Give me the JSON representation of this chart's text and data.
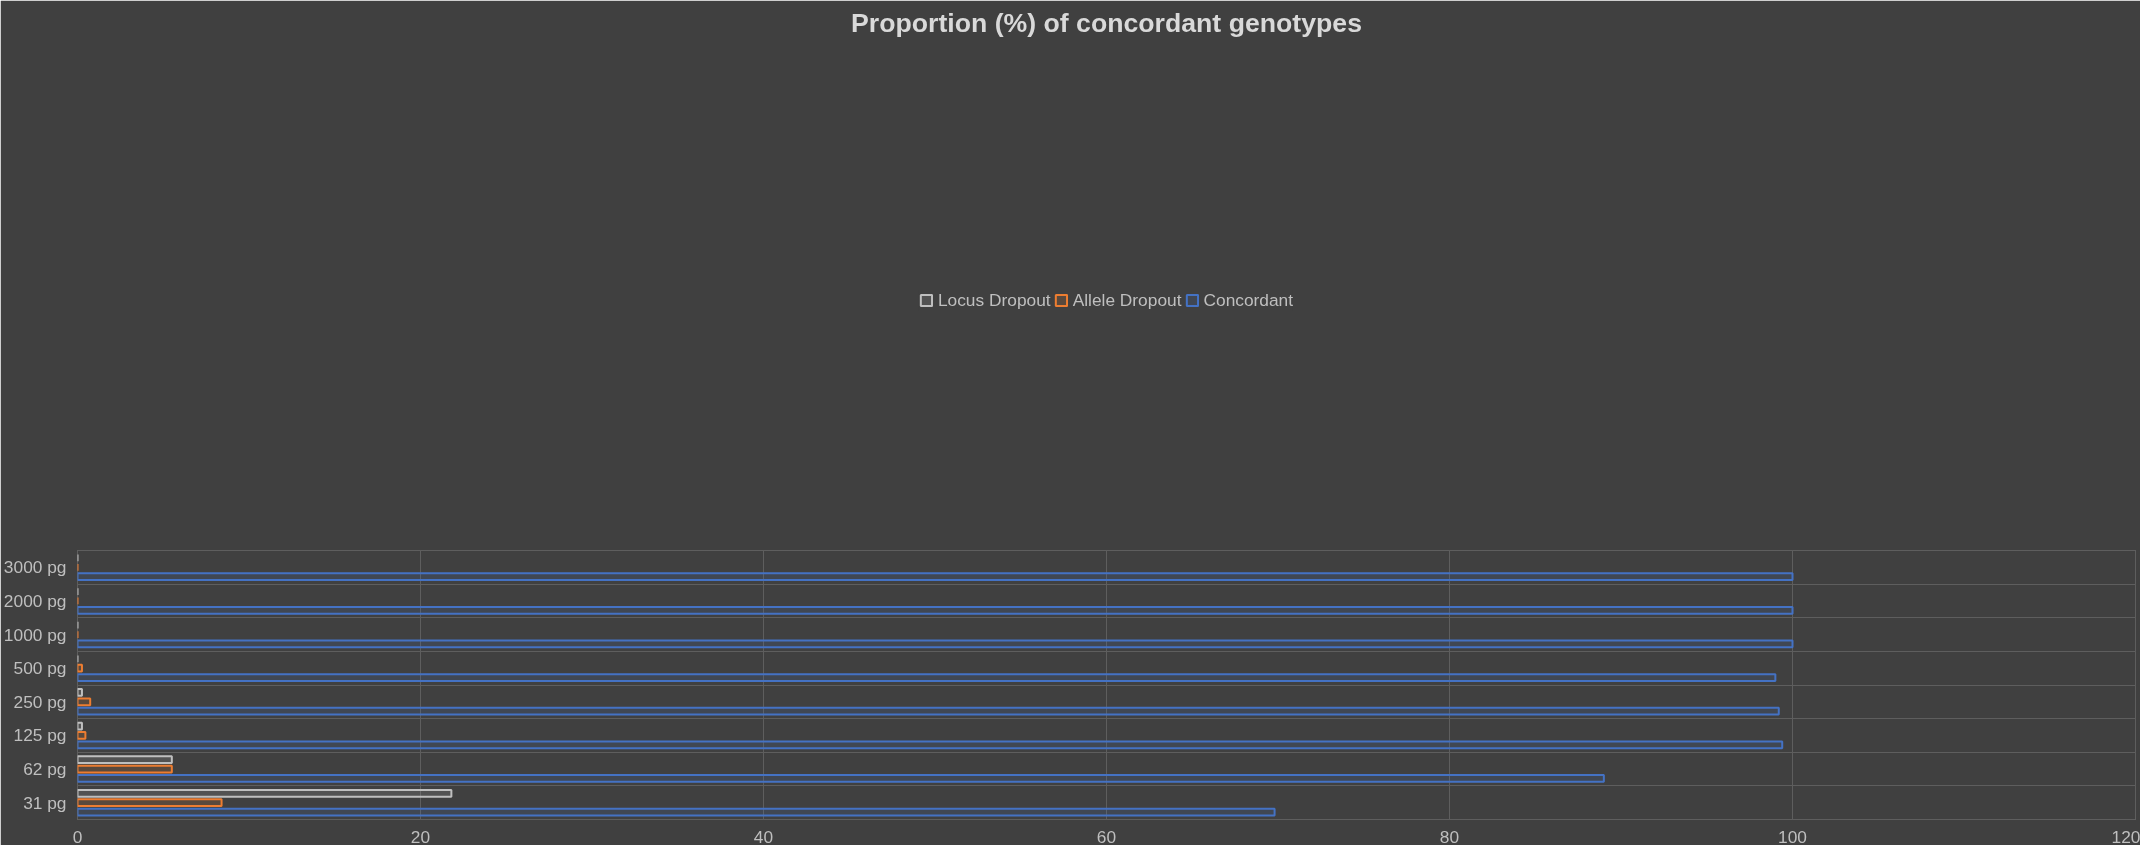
{
  "chart_data": {
    "type": "bar",
    "orientation": "horizontal",
    "title": "Proportion (%) of concordant genotypes",
    "categories": [
      "3000 pg",
      "2000 pg",
      "1000 pg",
      "500 pg",
      "250 pg",
      "125 pg",
      "62 pg",
      "31 pg"
    ],
    "series": [
      {
        "name": "Locus Dropout",
        "color": "#bfbfbf",
        "values": [
          0,
          0,
          0,
          0,
          0.26,
          0.26,
          5.5,
          21.8
        ]
      },
      {
        "name": "Allele Dropout",
        "color": "#ed7d31",
        "values": [
          0,
          0,
          0,
          0.26,
          0.74,
          0.46,
          5.5,
          8.4
        ]
      },
      {
        "name": "Concordant",
        "color": "#4472c4",
        "values": [
          100,
          100,
          100,
          99.0,
          99.2,
          99.4,
          89.0,
          69.8
        ]
      }
    ],
    "xlim": [
      0,
      120
    ],
    "xticks": [
      0,
      20,
      40,
      60,
      80,
      100,
      120
    ],
    "grid": true,
    "legend": "top"
  }
}
